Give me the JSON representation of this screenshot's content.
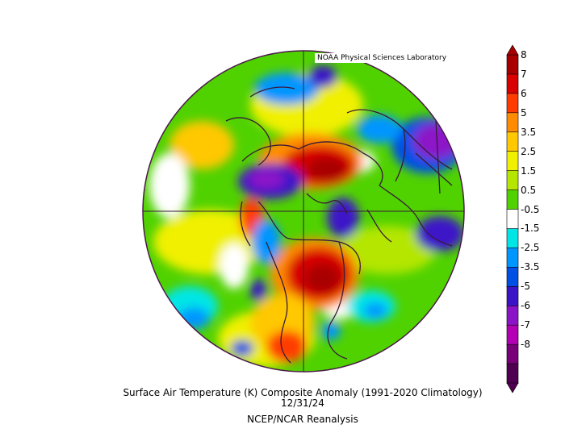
{
  "map": {
    "credit": "NOAA Physical Sciences Laboratory",
    "title": "Surface Air Temperature (K) Composite Anomaly (1991-2020 Climatology)",
    "date": "12/31/24",
    "source": "NCEP/NCAR Reanalysis"
  },
  "colorbar": {
    "labels": [
      "8",
      "7",
      "6",
      "5",
      "3.5",
      "2.5",
      "1.5",
      "0.5",
      "-0.5",
      "-1.5",
      "-2.5",
      "-3.5",
      "-5",
      "-6",
      "-7",
      "-8"
    ],
    "colors": [
      "#a80000",
      "#d80000",
      "#ff3c00",
      "#ff8c00",
      "#ffc800",
      "#f0f000",
      "#b4e600",
      "#50d200",
      "#ffffff",
      "#00e6e6",
      "#0096ff",
      "#0050e6",
      "#3c14c8",
      "#8c14c8",
      "#b400b4",
      "#780078",
      "#500050"
    ]
  },
  "colors": {
    "outline": "#4a1a4a",
    "background": "#ffffff"
  }
}
